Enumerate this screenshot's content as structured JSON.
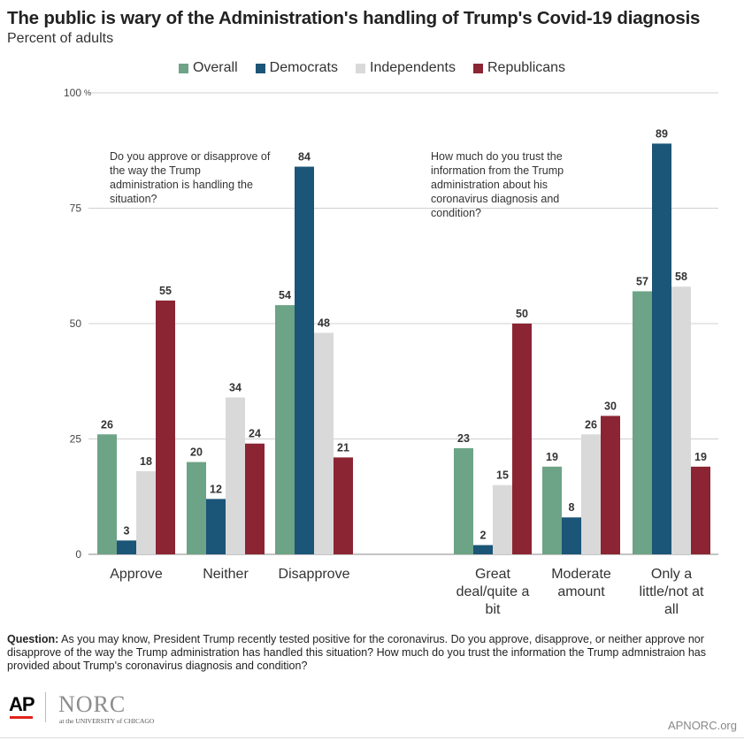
{
  "header": {
    "title": "The public is wary of the Administration's handling of Trump's Covid-19 diagnosis",
    "subtitle": "Percent of adults"
  },
  "legend": [
    {
      "label": "Overall",
      "color": "#6da386"
    },
    {
      "label": "Democrats",
      "color": "#1b5577"
    },
    {
      "label": "Independents",
      "color": "#d9d9d9"
    },
    {
      "label": "Republicans",
      "color": "#8b2533"
    }
  ],
  "chart_data": {
    "type": "bar",
    "ylim": [
      0,
      100
    ],
    "yticks": [
      {
        "value": 0,
        "label": "0"
      },
      {
        "value": 25,
        "label": "25"
      },
      {
        "value": 50,
        "label": "50"
      },
      {
        "value": 75,
        "label": "75"
      },
      {
        "value": 100,
        "label": "100"
      }
    ],
    "y_unit": "%",
    "grid": true,
    "legend_position": "top",
    "annotations": [
      "Do you approve or disapprove of the way the Trump administration is handling the situation?",
      "How much do you trust the information from the Trump administration about his coronavirus diagnosis and condition?"
    ],
    "categories": [
      [
        "Approve"
      ],
      [
        "Neither"
      ],
      [
        "Disapprove"
      ],
      [
        "Great",
        "deal/quite a",
        "bit"
      ],
      [
        "Moderate",
        "amount"
      ],
      [
        "Only a",
        "little/not at",
        "all"
      ]
    ],
    "series": [
      {
        "name": "Overall",
        "values": [
          26,
          20,
          54,
          23,
          19,
          57
        ]
      },
      {
        "name": "Democrats",
        "values": [
          3,
          12,
          84,
          2,
          8,
          89
        ]
      },
      {
        "name": "Independents",
        "values": [
          18,
          34,
          48,
          15,
          26,
          58
        ]
      },
      {
        "name": "Republicans",
        "values": [
          55,
          24,
          21,
          50,
          30,
          19
        ]
      }
    ]
  },
  "footnote": {
    "label": "Question:",
    "text": " As you may know, President Trump recently tested positive for the coronavirus. Do you approve, disapprove, or neither approve nor disapprove of the way the Trump administration has handled this situation? How much do you trust the information the Trump admnistraion has provided about Trump's coronavirus diagnosis and condition?"
  },
  "footer": {
    "ap_logo": "AP",
    "norc_logo": "NORC",
    "norc_sub": "at the UNIVERSITY of CHICAGO",
    "site": "APNORC.org"
  }
}
